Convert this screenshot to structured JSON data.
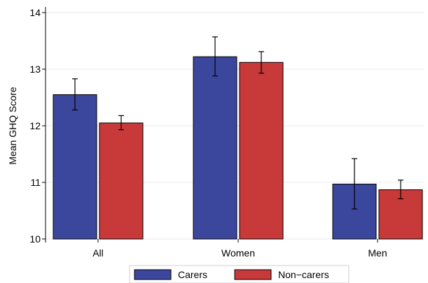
{
  "chart_data": {
    "type": "bar",
    "ylabel": "Mean GHQ Score",
    "xlabel": "",
    "ylim": [
      10,
      14
    ],
    "yticks": [
      10,
      11,
      12,
      13,
      14
    ],
    "categories": [
      "All",
      "Women",
      "Men"
    ],
    "grid": true,
    "legend_position": "bottom",
    "series": [
      {
        "name": "Carers",
        "color": "#3b479d",
        "values": [
          12.55,
          13.22,
          10.97
        ],
        "ci_low": [
          12.28,
          12.88,
          10.53
        ],
        "ci_high": [
          12.83,
          13.57,
          11.42
        ]
      },
      {
        "name": "Non−carers",
        "color": "#c8393a",
        "values": [
          12.05,
          13.12,
          10.87
        ],
        "ci_low": [
          11.93,
          12.93,
          10.71
        ],
        "ci_high": [
          12.18,
          13.31,
          11.04
        ]
      }
    ]
  }
}
